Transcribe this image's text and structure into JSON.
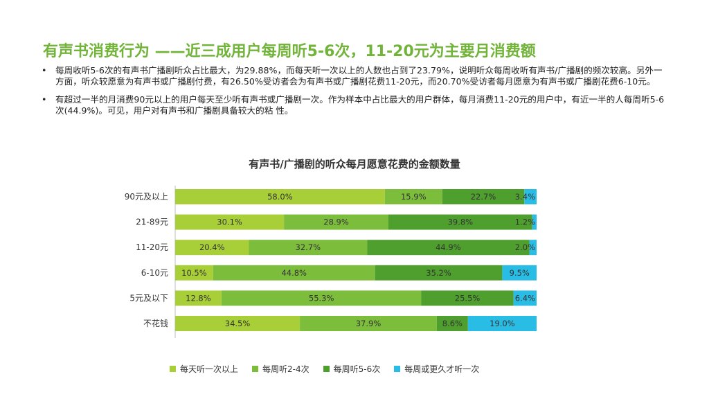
{
  "title": "有声书消费行为 ——近三成用户每周听5-6次，11-20元为主要月消费额",
  "bullets": [
    "每周收听5-6次的有声书广播剧听众占比最大，为29.88%，而每天听一次以上的人数也占到了23.79%，说明听众每周收听有声书/广播剧的频次较高。另外一方面，听众较愿意为有声书或广播剧付费，有26.50%受访者会为有声书或广播剧花费11-20元，而20.70%受访者每月愿意为有声书或广播剧花费6-10元。",
    "有超过一半的月消费90元以上的用户每天至少听有声书或广播剧一次。作为样本中占比最大的用户群体，每月消费11-20元的用户中，有近一半的人每周听5-6次(44.9%)。可见，用户对有声书和广播剧具备较大的粘 性。"
  ],
  "chart_data": {
    "type": "bar",
    "orientation": "horizontal",
    "stacked": true,
    "title": "有声书/广播剧的听众每月愿意花费的金额数量",
    "categories": [
      "90元及以上",
      "21-89元",
      "11-20元",
      "6-10元",
      "5元及以下",
      "不花钱"
    ],
    "series": [
      {
        "name": "每天听一次以上",
        "color": "#a9cf38",
        "values": [
          58.0,
          30.1,
          20.4,
          10.5,
          12.8,
          34.5
        ],
        "labels": [
          "58.0%",
          "30.1%",
          "20.4%",
          "10.5%",
          "12.8%",
          "34.5%"
        ]
      },
      {
        "name": "每周听2-4次",
        "color": "#7cbd3c",
        "values": [
          15.9,
          28.9,
          32.7,
          44.8,
          55.3,
          37.9
        ],
        "labels": [
          "15.9%",
          "28.9%",
          "32.7%",
          "44.8%",
          "55.3%",
          "37.9%"
        ]
      },
      {
        "name": "每周听5-6次",
        "color": "#4e9f2e",
        "values": [
          22.7,
          39.8,
          44.9,
          35.2,
          25.5,
          8.6
        ],
        "labels": [
          "22.7%",
          "39.8%",
          "44.9%",
          "35.2%",
          "25.5%",
          "8.6%"
        ]
      },
      {
        "name": "每周或更久才听一次",
        "color": "#29bde6",
        "values": [
          3.4,
          1.2,
          2.0,
          9.5,
          6.4,
          19.0
        ],
        "labels": [
          "3.4%",
          "1.2%",
          "2.0%",
          "9.5%",
          "6.4%",
          "19.0%"
        ]
      }
    ],
    "xlim": [
      0,
      100
    ],
    "legend_position": "bottom",
    "grid": false
  }
}
